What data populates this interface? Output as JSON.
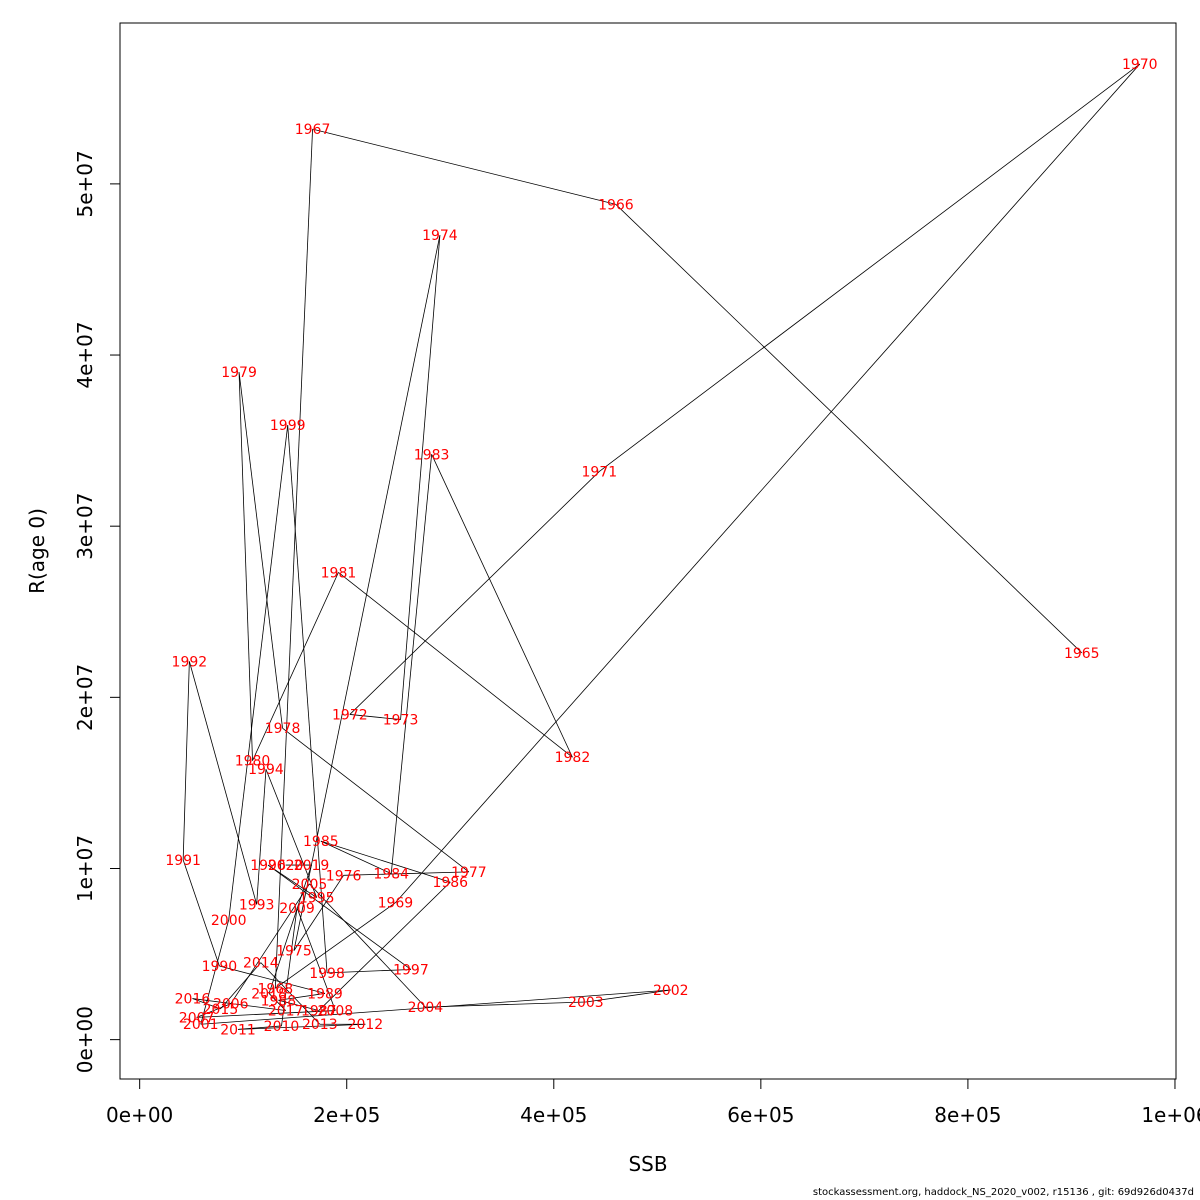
{
  "chart_data": {
    "type": "scatter",
    "connected": true,
    "xlabel": "SSB",
    "ylabel": "R(age 0)",
    "xlim": [
      -19000,
      1001000
    ],
    "ylim": [
      -2300000,
      59400000
    ],
    "xticks": [
      0,
      200000,
      400000,
      600000,
      800000,
      1000000
    ],
    "xtick_labels": [
      "0e+00",
      "2e+05",
      "4e+05",
      "6e+05",
      "8e+05",
      "1e+06"
    ],
    "yticks": [
      0,
      10000000,
      20000000,
      30000000,
      40000000,
      50000000
    ],
    "ytick_labels": [
      "0e+00",
      "1e+07",
      "2e+07",
      "3e+07",
      "4e+07",
      "5e+07"
    ],
    "grid": false,
    "point_color": "#ff0000",
    "line_color": "#000000",
    "points": [
      {
        "label": "1965",
        "x": 910000,
        "y": 22600000
      },
      {
        "label": "1966",
        "x": 460000,
        "y": 48800000
      },
      {
        "label": "1967",
        "x": 167000,
        "y": 53200000
      },
      {
        "label": "1968",
        "x": 131000,
        "y": 3000000
      },
      {
        "label": "1969",
        "x": 247000,
        "y": 8000000
      },
      {
        "label": "1970",
        "x": 966000,
        "y": 57000000
      },
      {
        "label": "1971",
        "x": 444000,
        "y": 33200000
      },
      {
        "label": "1972",
        "x": 203000,
        "y": 19000000
      },
      {
        "label": "1973",
        "x": 252000,
        "y": 18700000
      },
      {
        "label": "1974",
        "x": 290000,
        "y": 47000000
      },
      {
        "label": "1975",
        "x": 149000,
        "y": 5200000
      },
      {
        "label": "1976",
        "x": 197000,
        "y": 9600000
      },
      {
        "label": "1977",
        "x": 318000,
        "y": 9800000
      },
      {
        "label": "1978",
        "x": 138000,
        "y": 18200000
      },
      {
        "label": "1979",
        "x": 96000,
        "y": 39000000
      },
      {
        "label": "1980",
        "x": 109000,
        "y": 16300000
      },
      {
        "label": "1981",
        "x": 192000,
        "y": 27300000
      },
      {
        "label": "1982",
        "x": 418000,
        "y": 16500000
      },
      {
        "label": "1983",
        "x": 282000,
        "y": 34200000
      },
      {
        "label": "1984",
        "x": 243000,
        "y": 9700000
      },
      {
        "label": "1985",
        "x": 175000,
        "y": 11600000
      },
      {
        "label": "1986",
        "x": 300000,
        "y": 9200000
      },
      {
        "label": "1987",
        "x": 173000,
        "y": 1700000
      },
      {
        "label": "1988",
        "x": 134000,
        "y": 2300000
      },
      {
        "label": "1989",
        "x": 179000,
        "y": 2700000
      },
      {
        "label": "1990",
        "x": 77000,
        "y": 4300000
      },
      {
        "label": "1991",
        "x": 42000,
        "y": 10500000
      },
      {
        "label": "1992",
        "x": 48000,
        "y": 22100000
      },
      {
        "label": "1993",
        "x": 113000,
        "y": 7900000
      },
      {
        "label": "1994",
        "x": 122000,
        "y": 15800000
      },
      {
        "label": "1995",
        "x": 171000,
        "y": 8300000
      },
      {
        "label": "1996",
        "x": 124000,
        "y": 10200000
      },
      {
        "label": "1997",
        "x": 262000,
        "y": 4100000
      },
      {
        "label": "1998",
        "x": 181000,
        "y": 3900000
      },
      {
        "label": "1999",
        "x": 143000,
        "y": 35900000
      },
      {
        "label": "2000",
        "x": 86000,
        "y": 7000000
      },
      {
        "label": "2001",
        "x": 59000,
        "y": 900000
      },
      {
        "label": "2002",
        "x": 513000,
        "y": 2900000
      },
      {
        "label": "2003",
        "x": 431000,
        "y": 2200000
      },
      {
        "label": "2004",
        "x": 276000,
        "y": 1900000
      },
      {
        "label": "2005",
        "x": 164000,
        "y": 9100000
      },
      {
        "label": "2006",
        "x": 88000,
        "y": 2100000
      },
      {
        "label": "2007",
        "x": 55000,
        "y": 1300000
      },
      {
        "label": "2008",
        "x": 189000,
        "y": 1700000
      },
      {
        "label": "2009",
        "x": 152000,
        "y": 7700000
      },
      {
        "label": "2010",
        "x": 137000,
        "y": 800000
      },
      {
        "label": "2011",
        "x": 95000,
        "y": 600000
      },
      {
        "label": "2012",
        "x": 218000,
        "y": 900000
      },
      {
        "label": "2013",
        "x": 174000,
        "y": 900000
      },
      {
        "label": "2014",
        "x": 117000,
        "y": 4500000
      },
      {
        "label": "2015",
        "x": 78000,
        "y": 1800000
      },
      {
        "label": "2016",
        "x": 51000,
        "y": 2400000
      },
      {
        "label": "2017",
        "x": 141000,
        "y": 1700000
      },
      {
        "label": "2018",
        "x": 125000,
        "y": 2700000
      },
      {
        "label": "2019",
        "x": 166000,
        "y": 10200000
      },
      {
        "label": "2020",
        "x": 141000,
        "y": 10200000
      }
    ]
  },
  "footer_text": "stockassessment.org, haddock_NS_2020_v002, r15136 , git: 69d926d0437d"
}
